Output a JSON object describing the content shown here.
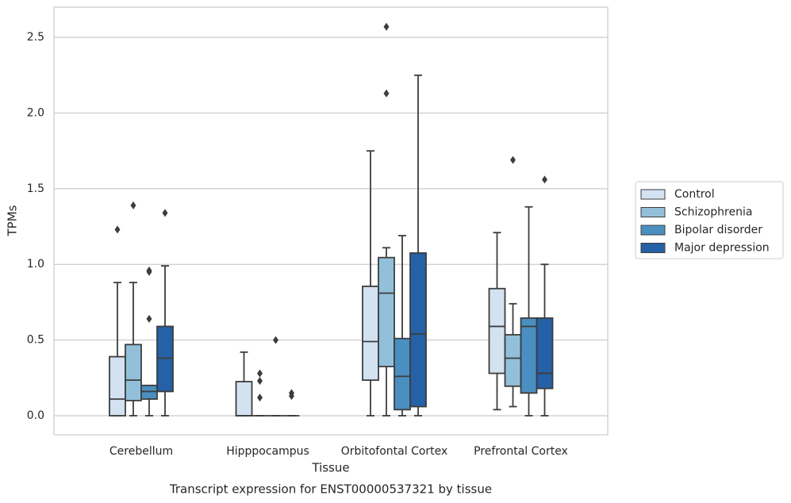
{
  "chart_data": {
    "type": "box",
    "title": "Transcript expression for ENST00000537321 by tissue",
    "xlabel": "Tissue",
    "ylabel": "TPMs",
    "categories": [
      "Cerebellum",
      "Hipppocampus",
      "Orbitofontal Cortex",
      "Prefrontal Cortex"
    ],
    "ylim": [
      -0.126,
      2.7
    ],
    "yticks": [
      {
        "value": 0,
        "label": "0.0"
      },
      0.5,
      {
        "value": 1,
        "label": "1.0"
      },
      1.5,
      {
        "value": 2,
        "label": "2.0"
      },
      2.5
    ],
    "grid": true,
    "legend": "right",
    "series": [
      {
        "name": "Control",
        "color": "#d3e2f1",
        "boxes": [
          {
            "whislo": 0,
            "q1": 0,
            "med": 0.11,
            "q3": 0.39,
            "whishi": 0.88,
            "fliers": [
              1.23
            ]
          },
          {
            "whislo": 0,
            "q1": 0,
            "med": 0,
            "q3": 0.225,
            "whishi": 0.42,
            "fliers": []
          },
          {
            "whislo": 0,
            "q1": 0.235,
            "med": 0.49,
            "q3": 0.855,
            "whishi": 1.75,
            "fliers": []
          },
          {
            "whislo": 0.04,
            "q1": 0.28,
            "med": 0.59,
            "q3": 0.84,
            "whishi": 1.21,
            "fliers": []
          }
        ]
      },
      {
        "name": "Schizophrenia",
        "color": "#92c0da",
        "boxes": [
          {
            "whislo": 0,
            "q1": 0.1,
            "med": 0.235,
            "q3": 0.47,
            "whishi": 0.88,
            "fliers": [
              1.39
            ]
          },
          {
            "whislo": 0,
            "q1": 0,
            "med": 0,
            "q3": 0,
            "whishi": 0,
            "fliers": [
              0.28,
              0.23,
              0.12
            ]
          },
          {
            "whislo": 0,
            "q1": 0.325,
            "med": 0.81,
            "q3": 1.045,
            "whishi": 1.11,
            "fliers": [
              2.57,
              2.13
            ]
          },
          {
            "whislo": 0.06,
            "q1": 0.195,
            "med": 0.38,
            "q3": 0.535,
            "whishi": 0.74,
            "fliers": [
              1.69
            ]
          }
        ]
      },
      {
        "name": "Bipolar disorder",
        "color": "#4a8fc1",
        "boxes": [
          {
            "whislo": 0,
            "q1": 0.11,
            "med": 0.16,
            "q3": 0.2,
            "whishi": 0.2,
            "fliers": [
              0.96,
              0.95,
              0.64
            ]
          },
          {
            "whislo": 0,
            "q1": 0,
            "med": 0,
            "q3": 0,
            "whishi": 0,
            "fliers": [
              0.5
            ]
          },
          {
            "whislo": 0,
            "q1": 0.04,
            "med": 0.26,
            "q3": 0.51,
            "whishi": 1.19,
            "fliers": []
          },
          {
            "whislo": 0,
            "q1": 0.15,
            "med": 0.59,
            "q3": 0.645,
            "whishi": 1.38,
            "fliers": []
          }
        ]
      },
      {
        "name": "Major depression",
        "color": "#2461a6",
        "boxes": [
          {
            "whislo": 0,
            "q1": 0.16,
            "med": 0.38,
            "q3": 0.59,
            "whishi": 0.99,
            "fliers": [
              1.34
            ]
          },
          {
            "whislo": 0,
            "q1": 0,
            "med": 0,
            "q3": 0,
            "whishi": 0,
            "fliers": [
              0.15,
              0.13
            ]
          },
          {
            "whislo": 0,
            "q1": 0.06,
            "med": 0.54,
            "q3": 1.075,
            "whishi": 2.25,
            "fliers": []
          },
          {
            "whislo": 0,
            "q1": 0.18,
            "med": 0.28,
            "q3": 0.645,
            "whishi": 1.0,
            "fliers": [
              1.56
            ]
          }
        ]
      }
    ]
  }
}
